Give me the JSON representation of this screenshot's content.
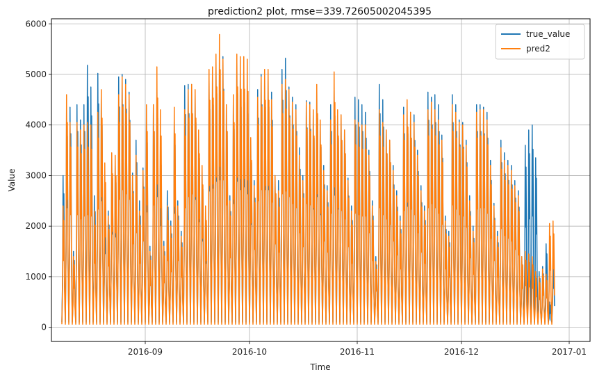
{
  "chart_data": {
    "type": "line",
    "title": "prediction2 plot, rmse=339.72605002045395",
    "xlabel": "Time",
    "ylabel": "Value",
    "x_axis_type": "date",
    "xlim": [
      "2016-08-05",
      "2017-01-07"
    ],
    "ylim": [
      -280,
      6100
    ],
    "yticks": [
      0,
      1000,
      2000,
      3000,
      4000,
      5000,
      6000
    ],
    "xticks": [
      "2016-09",
      "2016-10",
      "2016-11",
      "2016-12",
      "2017-01"
    ],
    "xtick_dates": [
      "2016-09-01",
      "2016-10-01",
      "2016-11-01",
      "2016-12-01",
      "2017-01-01"
    ],
    "grid": true,
    "legend_position": "top-right",
    "sampling": "daily peak / nightly trough approximation of the hourly series",
    "series": [
      {
        "name": "true_value",
        "color": "#1f77b4",
        "start_date": "2016-08-08",
        "daily_peaks": [
          3000,
          4300,
          4350,
          1500,
          4400,
          4100,
          4400,
          5180,
          4750,
          2600,
          5020,
          4550,
          2650,
          2300,
          3350,
          3250,
          4950,
          5000,
          4900,
          4650,
          3050,
          3700,
          2500,
          3150,
          4150,
          1600,
          4400,
          4700,
          3650,
          1700,
          2700,
          2100,
          4100,
          2500,
          1900,
          4780,
          4800,
          4800,
          4600,
          3800,
          3100,
          2300,
          4900,
          5000,
          5250,
          5300,
          5350,
          4400,
          2600,
          4450,
          5250,
          4950,
          5050,
          4800,
          3700,
          2900,
          4700,
          5000,
          4950,
          4950,
          4650,
          3000,
          2900,
          5100,
          5320,
          4750,
          4550,
          4400,
          3550,
          3000,
          4480,
          4450,
          4250,
          4700,
          4050,
          3200,
          2800,
          4400,
          4750,
          4250,
          4200,
          3900,
          2950,
          2400,
          4550,
          4500,
          4400,
          4250,
          3500,
          2500,
          1400,
          4800,
          4500,
          3900,
          3700,
          3200,
          2700,
          2200,
          4350,
          4350,
          4250,
          4200,
          3500,
          2800,
          2400,
          4650,
          4550,
          4600,
          4400,
          3800,
          2200,
          1900,
          4600,
          4400,
          4100,
          4050,
          3700,
          2600,
          2000,
          4400,
          4400,
          4350,
          4250,
          3300,
          2450,
          1900,
          3700,
          3450,
          3300,
          3200,
          2900,
          2700,
          1400,
          3600,
          3900,
          4000,
          3350,
          1100,
          1200,
          1650,
          500,
          1400
        ],
        "night_min": 100
      },
      {
        "name": "pred2",
        "color": "#ff7f0e",
        "start_date": "2016-08-08",
        "daily_peaks": [
          2400,
          4600,
          4050,
          1400,
          4050,
          3900,
          4000,
          4050,
          4000,
          2300,
          4250,
          4700,
          3250,
          2200,
          3450,
          3400,
          4600,
          4950,
          4800,
          4600,
          3000,
          3400,
          2300,
          3100,
          4400,
          1500,
          4400,
          5150,
          4300,
          1600,
          2400,
          2000,
          4350,
          2400,
          1800,
          4300,
          4700,
          4800,
          4700,
          3900,
          3200,
          2400,
          5100,
          5150,
          5400,
          5790,
          5300,
          4400,
          2500,
          4600,
          5400,
          5350,
          5350,
          5300,
          3750,
          2800,
          4550,
          4950,
          5100,
          5100,
          4500,
          3000,
          2700,
          4800,
          4900,
          4700,
          4450,
          4300,
          3400,
          2900,
          4450,
          4400,
          4300,
          4800,
          4100,
          3100,
          2700,
          4100,
          5050,
          4300,
          4200,
          3900,
          2900,
          2300,
          4100,
          4050,
          4000,
          4000,
          3400,
          2400,
          1300,
          4300,
          4050,
          3900,
          3700,
          3100,
          2600,
          2100,
          4200,
          4500,
          4250,
          4050,
          3400,
          2700,
          2300,
          4300,
          4450,
          4300,
          4100,
          3700,
          2100,
          1800,
          4400,
          4250,
          4050,
          4000,
          3600,
          2500,
          1900,
          4250,
          4300,
          4300,
          4100,
          3200,
          2400,
          1800,
          3550,
          3300,
          3200,
          3100,
          2800,
          2600,
          1400,
          1500,
          1450,
          1400,
          1100,
          1000,
          1150,
          1050,
          2050,
          2100
        ],
        "night_min": 60
      }
    ]
  }
}
